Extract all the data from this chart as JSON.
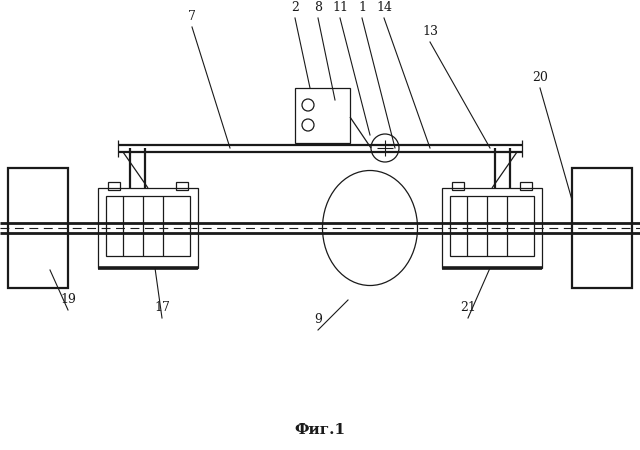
{
  "title": "Фиг.1",
  "background_color": "#ffffff",
  "line_color": "#1a1a1a",
  "fig_width": 6.4,
  "fig_height": 4.5,
  "dpi": 100
}
